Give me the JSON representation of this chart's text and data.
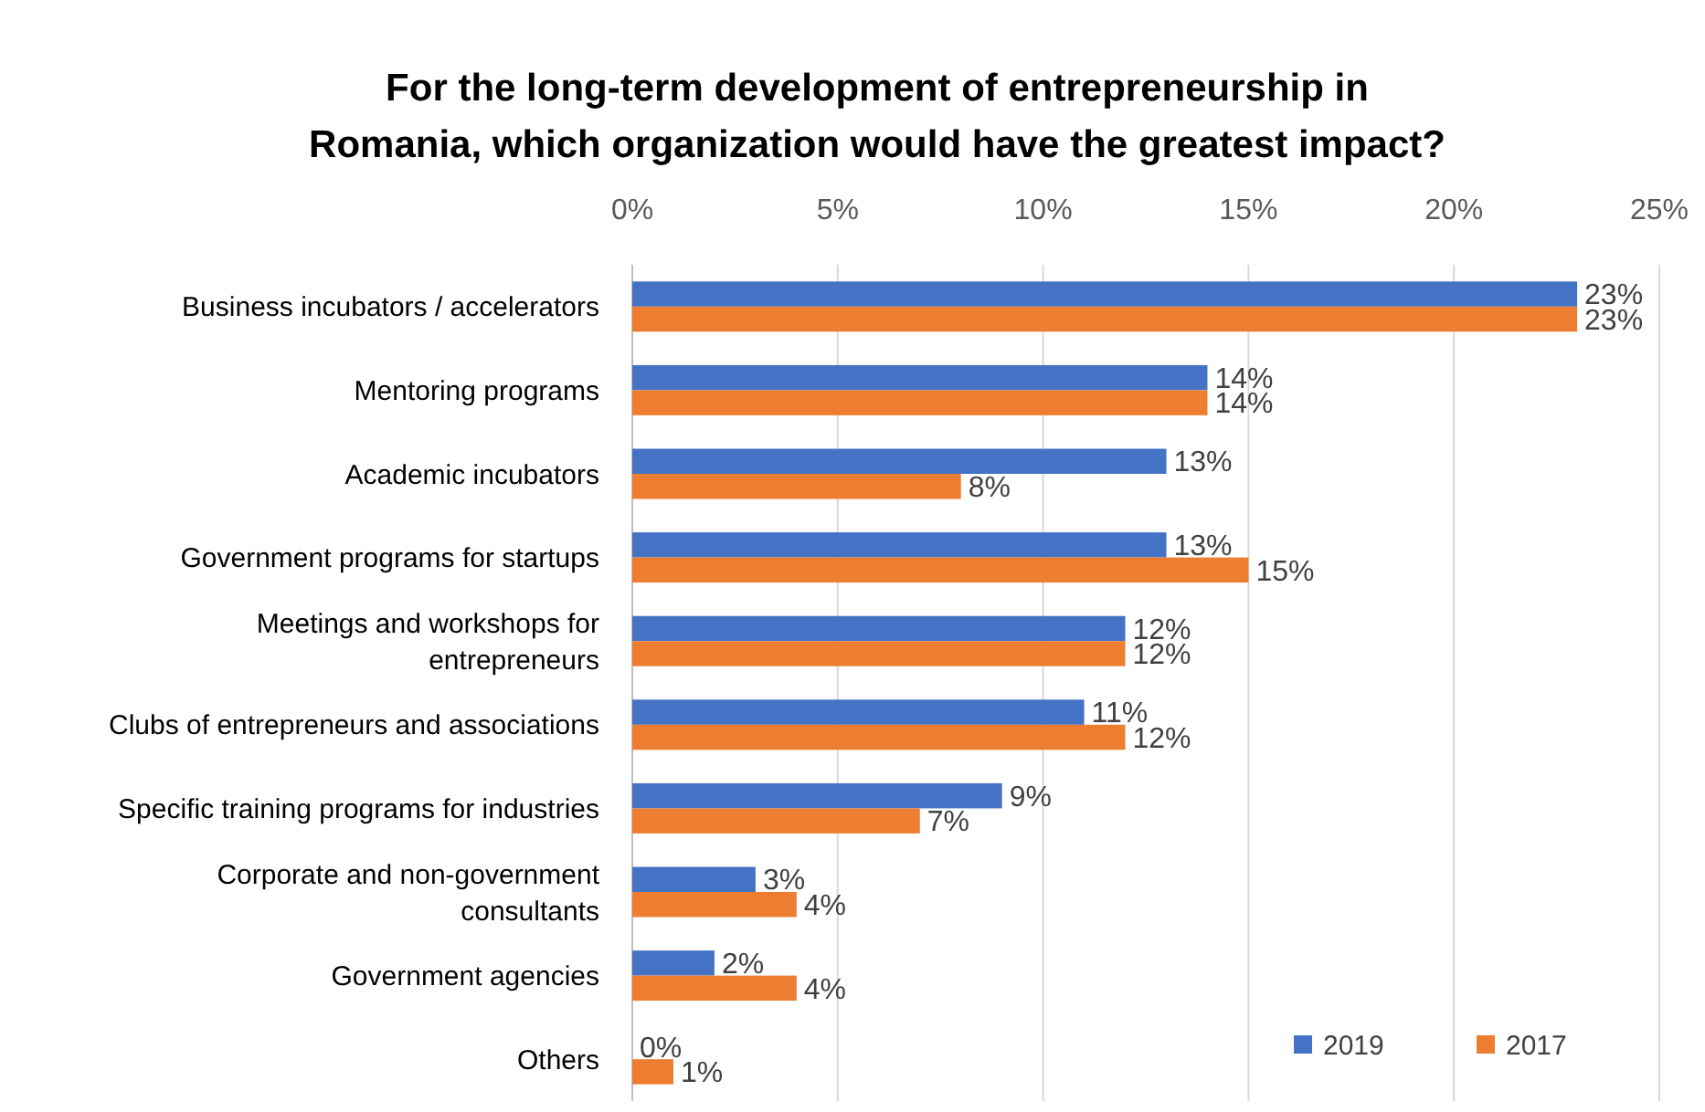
{
  "chart_data": {
    "type": "bar",
    "orientation": "horizontal",
    "title": "For the long-term development of entrepreneurship in\nRomania, which organization would have the greatest impact?",
    "categories": [
      "Business incubators / accelerators",
      "Mentoring programs",
      "Academic incubators",
      "Government programs for startups",
      "Meetings and workshops for\nentrepreneurs",
      "Clubs of entrepreneurs and associations",
      "Specific training programs for industries",
      "Corporate and non-government\nconsultants",
      "Government agencies",
      "Others"
    ],
    "series": [
      {
        "name": "2019",
        "color": "#4472c4",
        "values": [
          23,
          14,
          13,
          13,
          12,
          11,
          9,
          3,
          2,
          0
        ],
        "value_labels": [
          "23%",
          "14%",
          "13%",
          "13%",
          "12%",
          "11%",
          "9%",
          "3%",
          "2%",
          "0%"
        ]
      },
      {
        "name": "2017",
        "color": "#ed7d31",
        "values": [
          23,
          14,
          8,
          15,
          12,
          12,
          7,
          4,
          4,
          1
        ],
        "value_labels": [
          "23%",
          "14%",
          "8%",
          "15%",
          "12%",
          "12%",
          "7%",
          "4%",
          "4%",
          "1%"
        ]
      }
    ],
    "xlim": [
      0,
      25
    ],
    "xticks": [
      {
        "value": 0,
        "label": "0%"
      },
      {
        "value": 5,
        "label": "5%"
      },
      {
        "value": 10,
        "label": "10%"
      },
      {
        "value": 15,
        "label": "15%"
      },
      {
        "value": 20,
        "label": "20%"
      },
      {
        "value": 25,
        "label": "25%"
      }
    ],
    "grid": "x",
    "legend": "bottom right"
  }
}
